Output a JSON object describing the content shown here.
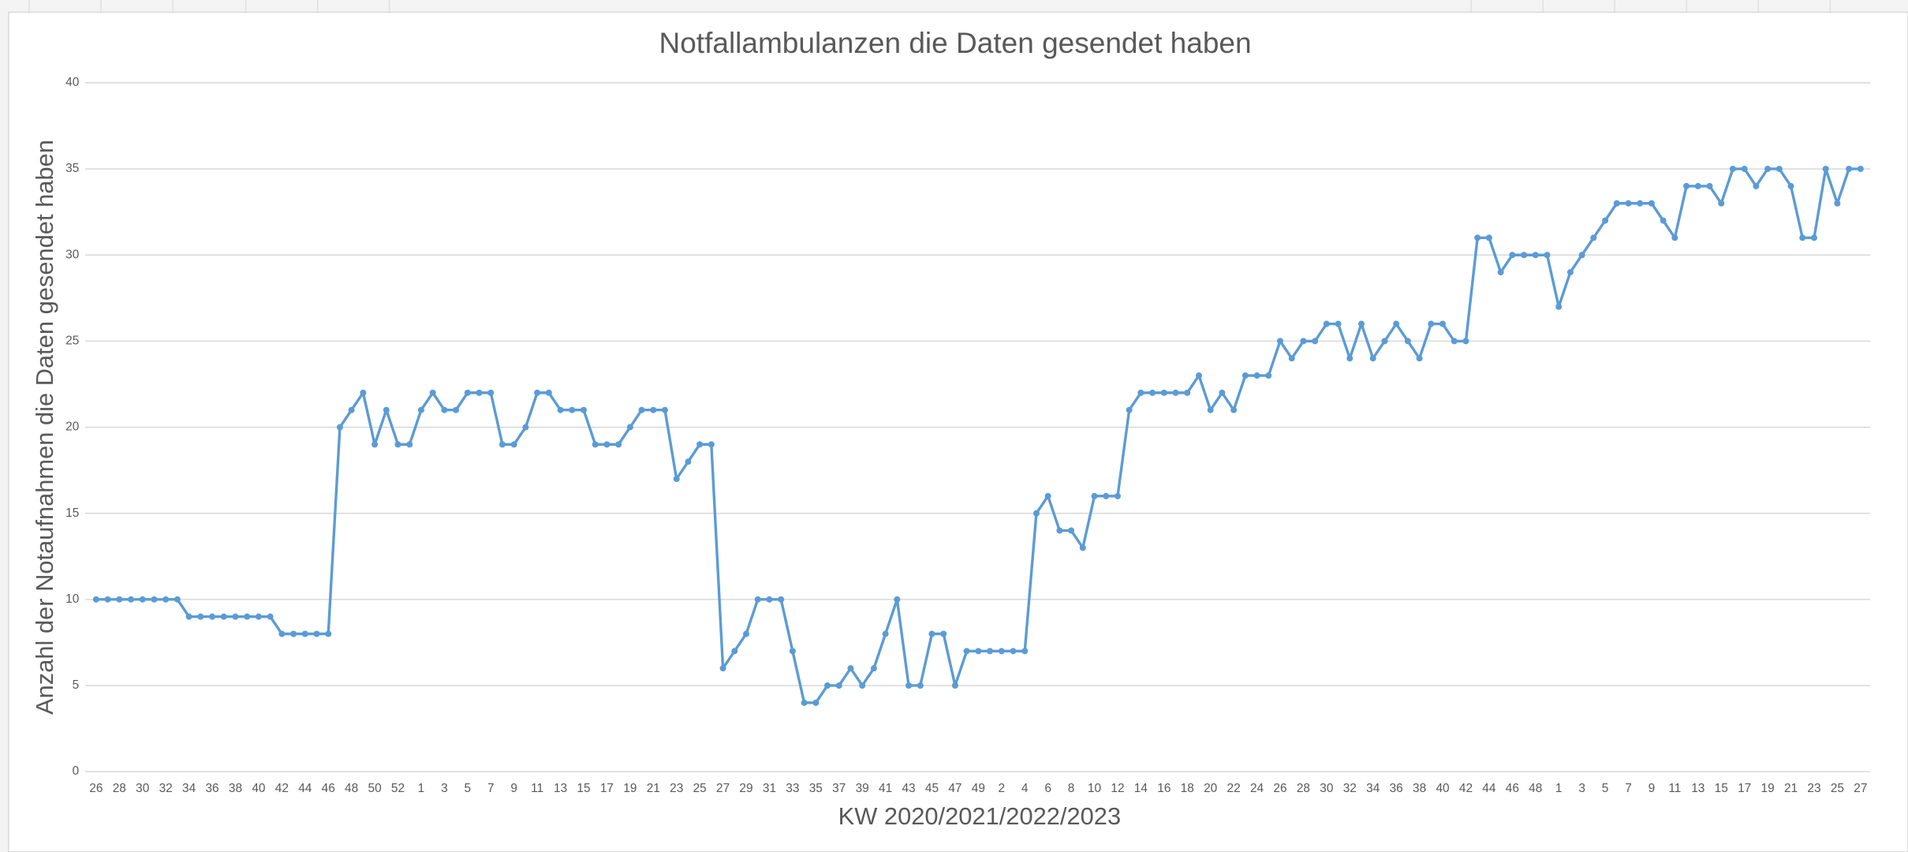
{
  "chart_data": {
    "type": "line",
    "title": "Notfallambulanzen die Daten gesendet haben",
    "x_label": "KW 2020/2021/2022/2023",
    "y_label": "Anzahl der Notaufnahmen die Daten gesendet haben",
    "categories": [
      "26",
      null,
      "28",
      null,
      "30",
      null,
      "32",
      null,
      "34",
      null,
      "36",
      null,
      "38",
      null,
      "40",
      null,
      "42",
      null,
      "44",
      null,
      "46",
      null,
      "48",
      null,
      "50",
      null,
      "52",
      null,
      "1",
      null,
      "3",
      null,
      "5",
      null,
      "7",
      null,
      "9",
      null,
      "11",
      null,
      "13",
      null,
      "15",
      null,
      "17",
      null,
      "19",
      null,
      "21",
      null,
      "23",
      null,
      "25",
      null,
      "27",
      null,
      "29",
      null,
      "31",
      null,
      "33",
      null,
      "35",
      null,
      "37",
      null,
      "39",
      null,
      "41",
      null,
      "43",
      null,
      "45",
      null,
      "47",
      null,
      "49",
      null,
      "2",
      null,
      "4",
      null,
      "6",
      null,
      "8",
      null,
      "10",
      null,
      "12",
      null,
      "14",
      null,
      "16",
      null,
      "18",
      null,
      "20",
      null,
      "22",
      null,
      "24",
      null,
      "26",
      null,
      "28",
      null,
      "30",
      null,
      "32",
      null,
      "34",
      null,
      "36",
      null,
      "38",
      null,
      "40",
      null,
      "42",
      null,
      "44",
      null,
      "46",
      null,
      "48",
      null,
      "1",
      null,
      "3",
      null,
      "5",
      null,
      "7",
      null,
      "9",
      null,
      "11",
      null,
      "13",
      null,
      "15",
      null,
      "17",
      null,
      "19",
      null,
      "21",
      null,
      "23",
      null,
      "25",
      null,
      "27"
    ],
    "series": [
      {
        "name": "Notfallambulanzen",
        "color": "#5b9bd5",
        "values": [
          10,
          10,
          10,
          10,
          10,
          10,
          10,
          10,
          9,
          9,
          9,
          9,
          9,
          9,
          9,
          9,
          8,
          8,
          8,
          8,
          8,
          20,
          21,
          22,
          19,
          21,
          19,
          19,
          21,
          22,
          21,
          21,
          22,
          22,
          22,
          19,
          19,
          20,
          22,
          22,
          21,
          21,
          21,
          19,
          19,
          19,
          20,
          21,
          21,
          21,
          17,
          18,
          19,
          19,
          6,
          7,
          8,
          10,
          10,
          10,
          7,
          4,
          4,
          5,
          5,
          6,
          5,
          6,
          8,
          10,
          5,
          5,
          8,
          8,
          5,
          7,
          7,
          7,
          7,
          7,
          7,
          15,
          16,
          14,
          14,
          13,
          16,
          16,
          16,
          21,
          22,
          22,
          22,
          22,
          22,
          23,
          21,
          22,
          21,
          23,
          23,
          23,
          25,
          24,
          25,
          25,
          26,
          26,
          24,
          26,
          24,
          25,
          26,
          25,
          24,
          26,
          26,
          25,
          25,
          31,
          31,
          29,
          30,
          30,
          30,
          30,
          27,
          29,
          30,
          31,
          32,
          33,
          33,
          33,
          33,
          32,
          31,
          34,
          34,
          34,
          33,
          35,
          35,
          34,
          35,
          35,
          34,
          31,
          31,
          35,
          33,
          35,
          35
        ]
      }
    ],
    "ylim": [
      0,
      40
    ],
    "yticks": [
      0,
      5,
      10,
      15,
      20,
      25,
      30,
      35,
      40
    ],
    "grid": true,
    "markers": true
  }
}
